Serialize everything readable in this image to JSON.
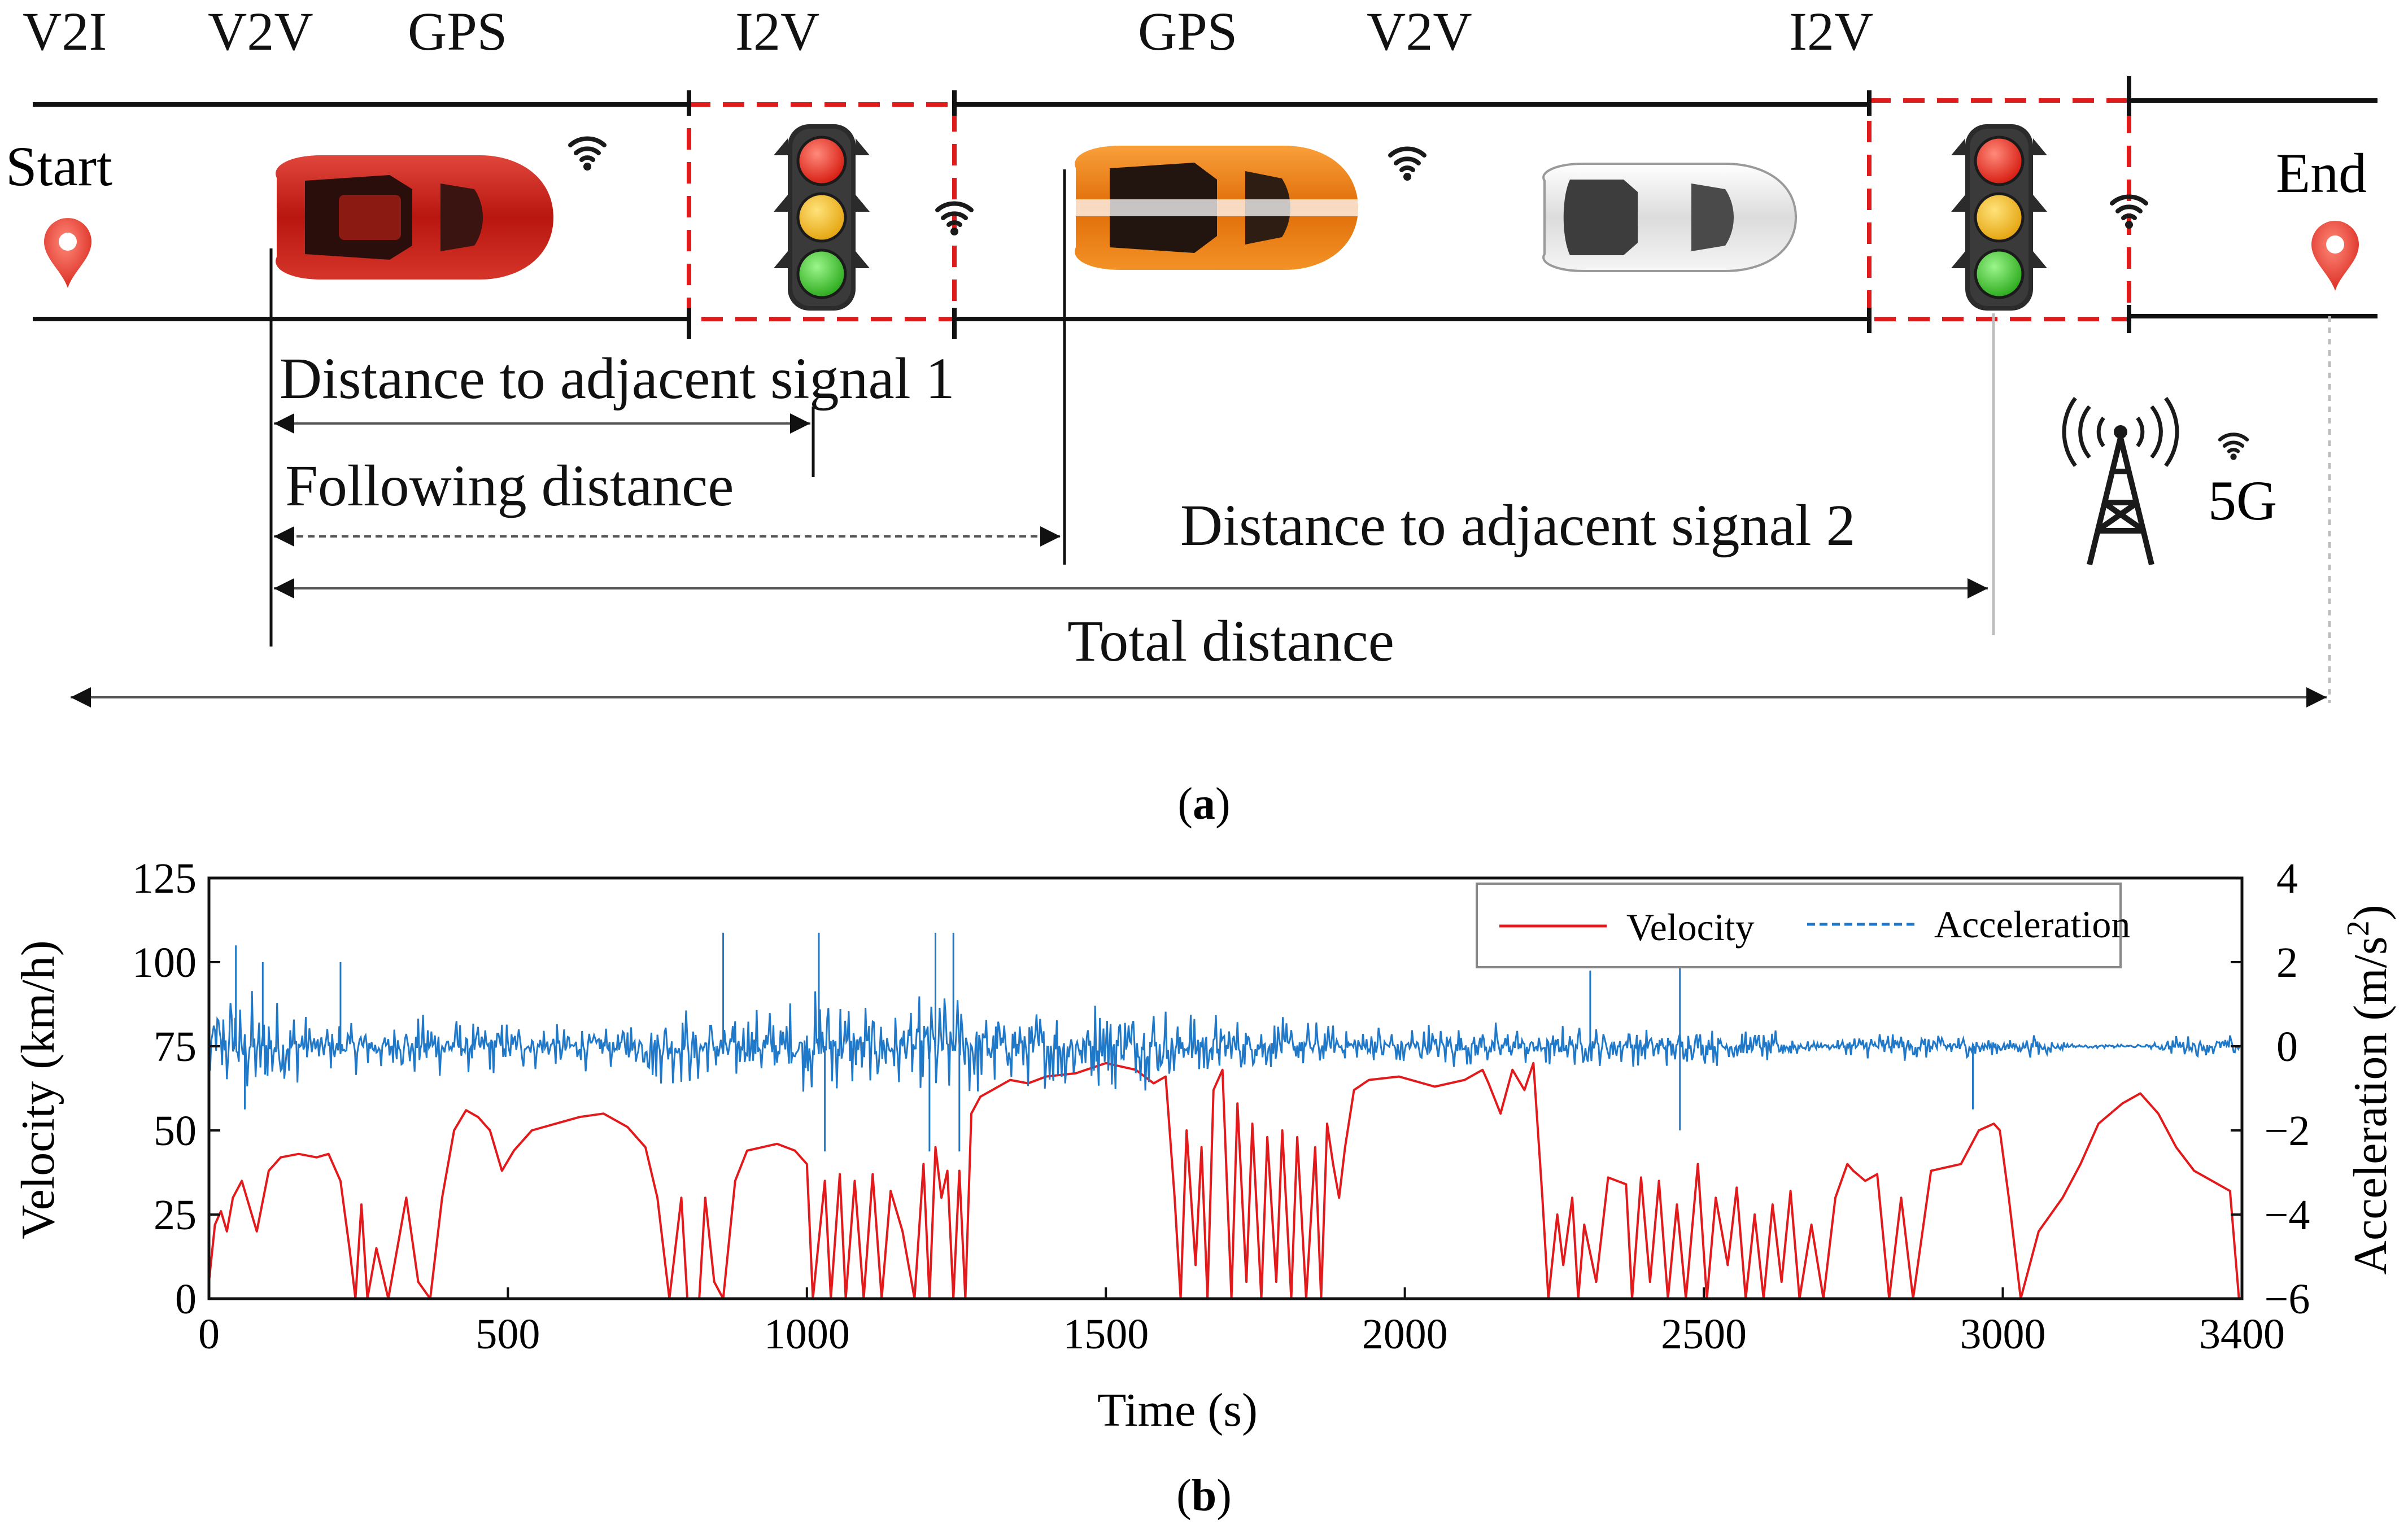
{
  "figure_a": {
    "comm_labels": [
      "V2I",
      "V2V",
      "GPS",
      "I2V",
      "GPS",
      "V2V",
      "I2V"
    ],
    "start_label": "Start",
    "end_label": "End",
    "dist_signal_1": "Distance to adjacent signal 1",
    "following_distance": "Following distance",
    "dist_signal_2": "Distance to adjacent signal 2",
    "total_distance": "Total distance",
    "network_label": "5G",
    "caption": "a",
    "colors": {
      "car_red": "#c9231b",
      "car_orange": "#f07d10",
      "car_white": "#e8e8e8",
      "signal_box": "#e01b1b"
    }
  },
  "figure_b_caption": "b",
  "chart_data": {
    "type": "line",
    "xlabel": "Time (s)",
    "ylabel": "Velocity (km/h)",
    "y2label_main": "Acceleration (m/s",
    "y2label_exp": "2",
    "y2label_tail": ")",
    "xlim": [
      0,
      3400
    ],
    "ylim": [
      0,
      125
    ],
    "y2lim": [
      -6,
      4
    ],
    "x_ticks": [
      0,
      500,
      1000,
      1500,
      2000,
      2500,
      3000,
      3400
    ],
    "y_ticks": [
      0,
      25,
      50,
      75,
      100,
      125
    ],
    "y2_ticks": [
      -6,
      -4,
      -2,
      0,
      2,
      4
    ],
    "legend": [
      "Velocity",
      "Acceleration"
    ],
    "series": [
      {
        "name": "Velocity",
        "axis": "left",
        "color": "#e31a1c",
        "x": [
          0,
          10,
          20,
          30,
          40,
          55,
          80,
          100,
          120,
          150,
          180,
          200,
          220,
          235,
          245,
          255,
          265,
          280,
          300,
          330,
          350,
          370,
          390,
          410,
          430,
          450,
          470,
          490,
          510,
          540,
          580,
          620,
          660,
          700,
          730,
          750,
          770,
          790,
          800,
          820,
          830,
          845,
          860,
          880,
          900,
          950,
          980,
          1000,
          1010,
          1030,
          1040,
          1055,
          1065,
          1080,
          1095,
          1110,
          1125,
          1140,
          1160,
          1180,
          1195,
          1205,
          1215,
          1225,
          1235,
          1245,
          1255,
          1265,
          1275,
          1290,
          1310,
          1340,
          1370,
          1400,
          1450,
          1500,
          1550,
          1580,
          1600,
          1615,
          1625,
          1635,
          1650,
          1660,
          1670,
          1680,
          1695,
          1710,
          1720,
          1735,
          1745,
          1760,
          1770,
          1785,
          1795,
          1810,
          1820,
          1835,
          1850,
          1860,
          1870,
          1880,
          1890,
          1900,
          1915,
          1940,
          1990,
          2050,
          2100,
          2130,
          2140,
          2160,
          2180,
          2200,
          2215,
          2230,
          2240,
          2255,
          2265,
          2280,
          2290,
          2300,
          2320,
          2340,
          2355,
          2370,
          2380,
          2395,
          2410,
          2425,
          2440,
          2455,
          2470,
          2480,
          2490,
          2505,
          2520,
          2540,
          2555,
          2570,
          2585,
          2600,
          2615,
          2630,
          2645,
          2660,
          2680,
          2700,
          2720,
          2740,
          2750,
          2770,
          2790,
          2810,
          2830,
          2850,
          2880,
          2930,
          2960,
          2985,
          2995,
          3010,
          3030,
          3060,
          3100,
          3130,
          3160,
          3200,
          3230,
          3260,
          3290,
          3320,
          3350,
          3380,
          3395
        ],
        "values": [
          5,
          22,
          26,
          20,
          30,
          35,
          20,
          38,
          42,
          43,
          42,
          43,
          35,
          15,
          0,
          28,
          0,
          15,
          0,
          30,
          5,
          0,
          30,
          50,
          56,
          54,
          50,
          38,
          44,
          50,
          52,
          54,
          55,
          51,
          45,
          30,
          0,
          30,
          0,
          0,
          30,
          5,
          0,
          35,
          44,
          46,
          44,
          40,
          0,
          35,
          0,
          37,
          0,
          35,
          0,
          37,
          0,
          32,
          20,
          0,
          40,
          0,
          45,
          30,
          38,
          0,
          38,
          0,
          55,
          60,
          62,
          65,
          64,
          66,
          67,
          70,
          68,
          64,
          66,
          30,
          0,
          50,
          10,
          45,
          0,
          62,
          68,
          0,
          58,
          5,
          52,
          0,
          48,
          5,
          50,
          0,
          48,
          0,
          45,
          0,
          52,
          40,
          30,
          45,
          62,
          65,
          66,
          63,
          65,
          68,
          64,
          55,
          68,
          62,
          70,
          30,
          0,
          25,
          10,
          30,
          0,
          22,
          5,
          36,
          35,
          34,
          0,
          36,
          5,
          35,
          0,
          28,
          0,
          20,
          40,
          0,
          30,
          10,
          33,
          0,
          25,
          0,
          28,
          5,
          32,
          0,
          22,
          0,
          30,
          40,
          38,
          35,
          37,
          0,
          30,
          0,
          38,
          40,
          50,
          52,
          50,
          30,
          0,
          20,
          30,
          40,
          52,
          58,
          61,
          55,
          45,
          38,
          35,
          32,
          0
        ]
      },
      {
        "name": "Acceleration",
        "axis": "right",
        "color": "#1f78c8",
        "x": [
          0,
          60,
          120,
          180,
          240,
          300,
          360,
          420,
          480,
          540,
          600,
          660,
          720,
          780,
          840,
          900,
          960,
          1020,
          1080,
          1140,
          1200,
          1260,
          1320,
          1380,
          1440,
          1500,
          1560,
          1620,
          1680,
          1740,
          1800,
          1860,
          1920,
          1980,
          2040,
          2100,
          2160,
          2220,
          2280,
          2340,
          2400,
          2460,
          2520,
          2580,
          2640,
          2700,
          2760,
          2820,
          2880,
          2940,
          3000,
          3060,
          3120,
          3180,
          3240,
          3300,
          3360,
          3400
        ],
        "amplitude": [
          1.5,
          1.5,
          1.2,
          0.6,
          0.7,
          0.6,
          0.8,
          0.7,
          0.7,
          0.6,
          0.6,
          0.6,
          0.8,
          1.0,
          1.0,
          0.9,
          1.1,
          1.4,
          1.2,
          1.0,
          1.6,
          1.4,
          1.0,
          1.0,
          1.1,
          1.2,
          1.1,
          1.0,
          0.9,
          0.7,
          0.7,
          0.6,
          0.5,
          0.6,
          0.6,
          0.6,
          0.6,
          0.6,
          0.5,
          0.5,
          0.5,
          0.5,
          0.5,
          0.4,
          0.4,
          0.05,
          0.3,
          0.4,
          0.4,
          0.3,
          0.2,
          0.3,
          0.05,
          0.05,
          0.05,
          0.3,
          0.3,
          0.3
        ],
        "spikes": [
          [
            45,
            2.4
          ],
          [
            60,
            -1.5
          ],
          [
            90,
            2.0
          ],
          [
            220,
            2.0
          ],
          [
            860,
            2.7
          ],
          [
            1020,
            2.7
          ],
          [
            1030,
            -2.5
          ],
          [
            1205,
            -2.5
          ],
          [
            1215,
            2.7
          ],
          [
            1245,
            2.7
          ],
          [
            1255,
            -2.5
          ],
          [
            2310,
            1.8
          ],
          [
            2460,
            2.0
          ],
          [
            2460,
            -2.0
          ],
          [
            2950,
            -1.5
          ]
        ]
      }
    ]
  }
}
